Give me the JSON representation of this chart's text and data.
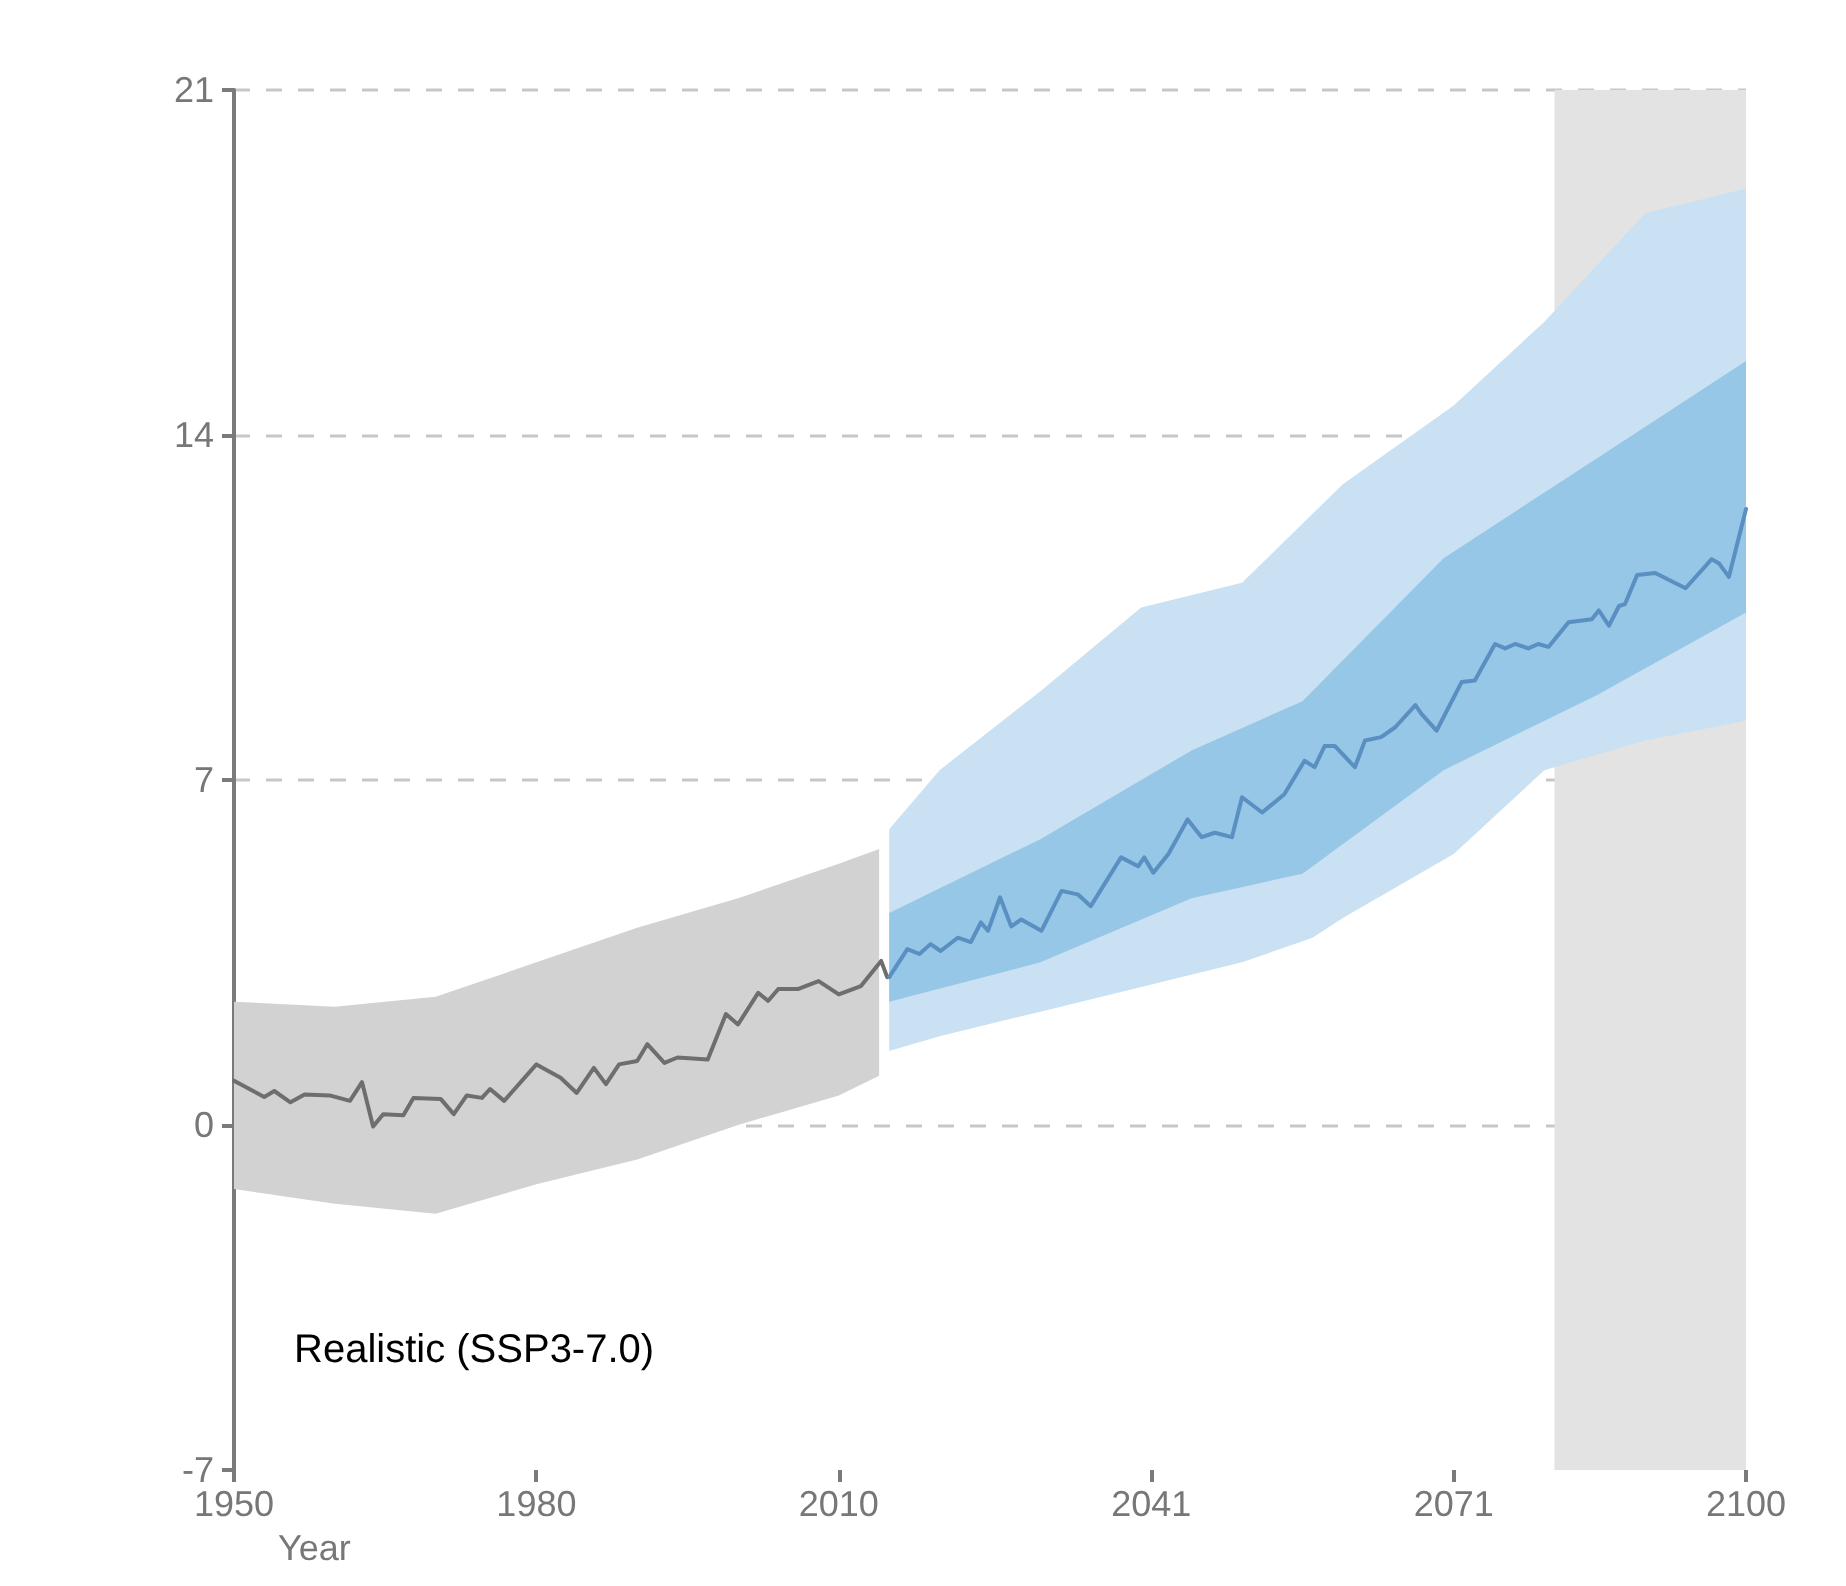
{
  "chart_data": {
    "type": "line",
    "xlabel": "Year",
    "annotations": [
      "Realistic (SSP3-7.0)"
    ],
    "xlim": [
      1950,
      2100
    ],
    "xticks": [
      1950,
      1980,
      2010,
      2041,
      2071,
      2100
    ],
    "ylim": [
      -7,
      21
    ],
    "yticks": [
      -7,
      0,
      7,
      14,
      21
    ],
    "grid": "y",
    "marker": "none",
    "line_style": "solid",
    "bands": [
      {
        "axis": "x",
        "from": 2081,
        "to": 2100,
        "color": "#e3e3e3"
      }
    ],
    "series": [
      {
        "type": "area",
        "color": "#d2d2d2",
        "values": [
          null,
          null,
          null,
          null,
          null,
          null,
          null,
          null
        ],
        "x": [
          1950,
          1960,
          1970,
          1980,
          1990,
          2000,
          2010,
          2014
        ],
        "lower": [
          -1.3,
          -1.6,
          -1.8,
          -1.2,
          -0.7,
          0.0,
          0.6,
          1.0
        ],
        "upper": [
          2.5,
          2.4,
          2.6,
          3.3,
          4.0,
          4.6,
          5.3,
          5.6
        ]
      },
      {
        "type": "area",
        "color": "#c9e1f2",
        "values": [
          null,
          null,
          null,
          null,
          null,
          null,
          null,
          null,
          null,
          null,
          null
        ],
        "x": [
          2015,
          2020,
          2030,
          2040,
          2050,
          2057,
          2060,
          2071,
          2080,
          2090,
          2100
        ],
        "lower": [
          1.5,
          1.8,
          2.3,
          2.8,
          3.3,
          3.8,
          4.2,
          5.5,
          7.2,
          7.8,
          8.2
        ],
        "upper": [
          6.0,
          7.2,
          8.8,
          10.5,
          11.0,
          12.4,
          13.0,
          14.6,
          16.3,
          18.5,
          19.0
        ]
      },
      {
        "type": "area",
        "color": "#97c7e6",
        "values": [
          null,
          null,
          null,
          null,
          null,
          null,
          null
        ],
        "x": [
          2015,
          2030,
          2045,
          2056,
          2070,
          2085,
          2100
        ],
        "lower": [
          2.5,
          3.3,
          4.6,
          5.1,
          7.2,
          8.7,
          10.4
        ],
        "upper": [
          4.3,
          5.8,
          7.6,
          8.6,
          11.5,
          13.5,
          15.5
        ]
      },
      {
        "color": "#6e6e6e",
        "x": [
          1950,
          1953,
          1954,
          1955.6,
          1957,
          1959.5,
          1961.5,
          1962.7,
          1963.8,
          1964.8,
          1966.8,
          1967.8,
          1970.5,
          1971.8,
          1973.1,
          1974.6,
          1975.4,
          1976.8,
          1980,
          1982.4,
          1984,
          1985.7,
          1986.9,
          1988.2,
          1990,
          1991,
          1992.7,
          1994,
          1997,
          1998.8,
          2000,
          2002,
          2003,
          2004,
          2006,
          2008,
          2010,
          2012.2,
          2014.2,
          2014.8
        ],
        "values": [
          0.9,
          0.57,
          0.69,
          0.46,
          0.62,
          0.6,
          0.49,
          0.87,
          -0.03,
          0.22,
          0.2,
          0.55,
          0.53,
          0.22,
          0.6,
          0.55,
          0.73,
          0.49,
          1.23,
          0.96,
          0.65,
          1.16,
          0.83,
          1.23,
          1.3,
          1.64,
          1.26,
          1.37,
          1.33,
          2.25,
          2.04,
          2.68,
          2.52,
          2.76,
          2.76,
          2.92,
          2.65,
          2.82,
          3.33,
          3.0
        ]
      },
      {
        "color": "#5a8fc2",
        "x": [
          2015,
          2016.8,
          2018,
          2019.1,
          2020.1,
          2021.8,
          2023.1,
          2024.1,
          2024.8,
          2026,
          2027.1,
          2028.1,
          2030.1,
          2032.1,
          2033.7,
          2035,
          2038,
          2039.7,
          2040.3,
          2041.2,
          2042.7,
          2044.6,
          2046,
          2047.3,
          2049,
          2050,
          2052,
          2054.2,
          2056.2,
          2057.2,
          2058.2,
          2059.2,
          2061.2,
          2062.2,
          2063.8,
          2065.2,
          2067.2,
          2067.8,
          2069.3,
          2071.8,
          2073.1,
          2075.1,
          2076.1,
          2077.1,
          2078.4,
          2079.4,
          2080.4,
          2082.4,
          2084.7,
          2085.4,
          2086.4,
          2087.4,
          2088,
          2089.2,
          2091,
          2094,
          2096.6,
          2097.3,
          2098.3,
          2100
        ],
        "values": [
          3.0,
          3.57,
          3.47,
          3.67,
          3.53,
          3.8,
          3.71,
          4.11,
          3.94,
          4.62,
          4.03,
          4.17,
          3.94,
          4.75,
          4.68,
          4.44,
          5.43,
          5.25,
          5.43,
          5.12,
          5.5,
          6.2,
          5.84,
          5.93,
          5.84,
          6.65,
          6.34,
          6.71,
          7.39,
          7.26,
          7.69,
          7.69,
          7.26,
          7.8,
          7.87,
          8.07,
          8.52,
          8.34,
          8.0,
          8.99,
          9.02,
          9.76,
          9.67,
          9.76,
          9.67,
          9.76,
          9.7,
          10.2,
          10.26,
          10.44,
          10.13,
          10.53,
          10.57,
          11.16,
          11.2,
          10.89,
          11.48,
          11.4,
          11.12,
          12.5
        ]
      }
    ]
  }
}
